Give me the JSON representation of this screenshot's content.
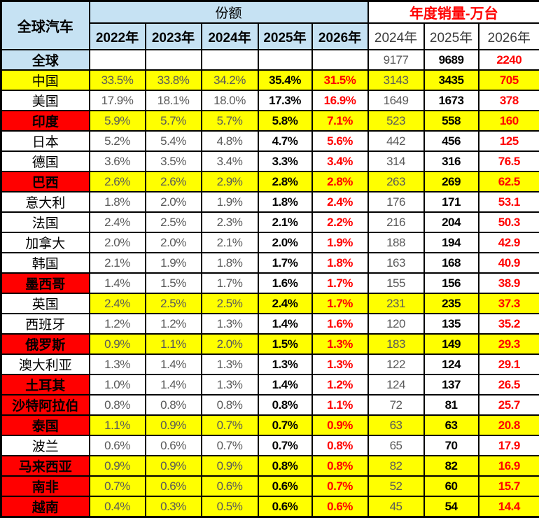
{
  "colors": {
    "yellow": "#FFFF00",
    "red": "#FF0000",
    "blue": "#C6E2F3",
    "grid": "#000000",
    "dim_text": "#595959",
    "red_text": "#FF0000"
  },
  "header": {
    "corner": "全球汽车",
    "share_group": "份额",
    "sales_group": "年度销量-万台",
    "share_years": [
      "2022年",
      "2023年",
      "2024年",
      "2025年",
      "2026年"
    ],
    "sales_years": [
      "2024年",
      "2025年",
      "2026年"
    ]
  },
  "chart_data": {
    "type": "table",
    "title": "全球汽车",
    "column_groups": [
      "份额",
      "年度销量-万台"
    ],
    "share_years": [
      "2022年",
      "2023年",
      "2024年",
      "2025年",
      "2026年"
    ],
    "sales_years": [
      "2024年",
      "2025年",
      "2026年"
    ],
    "rows": [
      {
        "name": "全球",
        "name_bg": "blue",
        "data_bg": "white",
        "bold": true,
        "share": [
          "",
          "",
          "",
          "",
          ""
        ],
        "sales": [
          "9177",
          "9689",
          "2240"
        ]
      },
      {
        "name": "中国",
        "name_bg": "yellow",
        "data_bg": "yellow",
        "bold": false,
        "share": [
          "33.5%",
          "33.8%",
          "34.2%",
          "35.4%",
          "31.5%"
        ],
        "sales": [
          "3143",
          "3435",
          "705"
        ]
      },
      {
        "name": "美国",
        "name_bg": "white",
        "data_bg": "white",
        "bold": false,
        "share": [
          "17.9%",
          "18.1%",
          "18.0%",
          "17.3%",
          "16.9%"
        ],
        "sales": [
          "1649",
          "1673",
          "378"
        ]
      },
      {
        "name": "印度",
        "name_bg": "red",
        "data_bg": "yellow",
        "bold": true,
        "share": [
          "5.9%",
          "5.7%",
          "5.7%",
          "5.8%",
          "7.1%"
        ],
        "sales": [
          "523",
          "558",
          "160"
        ]
      },
      {
        "name": "日本",
        "name_bg": "white",
        "data_bg": "white",
        "bold": false,
        "share": [
          "5.2%",
          "5.4%",
          "4.8%",
          "4.7%",
          "5.6%"
        ],
        "sales": [
          "442",
          "456",
          "125"
        ]
      },
      {
        "name": "德国",
        "name_bg": "white",
        "data_bg": "white",
        "bold": false,
        "share": [
          "3.6%",
          "3.5%",
          "3.4%",
          "3.3%",
          "3.4%"
        ],
        "sales": [
          "314",
          "316",
          "76.5"
        ]
      },
      {
        "name": "巴西",
        "name_bg": "red",
        "data_bg": "yellow",
        "bold": true,
        "share": [
          "2.6%",
          "2.6%",
          "2.9%",
          "2.8%",
          "2.8%"
        ],
        "sales": [
          "263",
          "269",
          "62.5"
        ]
      },
      {
        "name": "意大利",
        "name_bg": "white",
        "data_bg": "white",
        "bold": false,
        "share": [
          "1.8%",
          "2.0%",
          "1.9%",
          "1.8%",
          "2.4%"
        ],
        "sales": [
          "176",
          "171",
          "53.1"
        ]
      },
      {
        "name": "法国",
        "name_bg": "white",
        "data_bg": "white",
        "bold": false,
        "share": [
          "2.4%",
          "2.5%",
          "2.3%",
          "2.1%",
          "2.2%"
        ],
        "sales": [
          "216",
          "204",
          "50.3"
        ]
      },
      {
        "name": "加拿大",
        "name_bg": "white",
        "data_bg": "white",
        "bold": false,
        "share": [
          "2.0%",
          "2.0%",
          "2.1%",
          "2.0%",
          "1.9%"
        ],
        "sales": [
          "188",
          "194",
          "42.9"
        ]
      },
      {
        "name": "韩国",
        "name_bg": "white",
        "data_bg": "white",
        "bold": false,
        "share": [
          "2.1%",
          "1.9%",
          "1.8%",
          "1.7%",
          "1.8%"
        ],
        "sales": [
          "163",
          "168",
          "40.9"
        ]
      },
      {
        "name": "墨西哥",
        "name_bg": "red",
        "data_bg": "white",
        "bold": true,
        "share": [
          "1.4%",
          "1.5%",
          "1.7%",
          "1.6%",
          "1.7%"
        ],
        "sales": [
          "155",
          "156",
          "38.9"
        ]
      },
      {
        "name": "英国",
        "name_bg": "white",
        "data_bg": "yellow",
        "bold": false,
        "share": [
          "2.4%",
          "2.5%",
          "2.5%",
          "2.4%",
          "1.7%"
        ],
        "sales": [
          "231",
          "235",
          "37.3"
        ]
      },
      {
        "name": "西班牙",
        "name_bg": "white",
        "data_bg": "white",
        "bold": false,
        "share": [
          "1.2%",
          "1.2%",
          "1.3%",
          "1.4%",
          "1.6%"
        ],
        "sales": [
          "120",
          "135",
          "35.2"
        ]
      },
      {
        "name": "俄罗斯",
        "name_bg": "red",
        "data_bg": "yellow",
        "bold": true,
        "share": [
          "0.9%",
          "1.1%",
          "2.0%",
          "1.5%",
          "1.3%"
        ],
        "sales": [
          "183",
          "149",
          "29.3"
        ]
      },
      {
        "name": "澳大利亚",
        "name_bg": "white",
        "data_bg": "white",
        "bold": false,
        "share": [
          "1.3%",
          "1.4%",
          "1.3%",
          "1.3%",
          "1.3%"
        ],
        "sales": [
          "122",
          "124",
          "29.1"
        ]
      },
      {
        "name": "土耳其",
        "name_bg": "red",
        "data_bg": "white",
        "bold": true,
        "share": [
          "1.0%",
          "1.4%",
          "1.3%",
          "1.4%",
          "1.2%"
        ],
        "sales": [
          "124",
          "137",
          "26.5"
        ]
      },
      {
        "name": "沙特阿拉伯",
        "name_bg": "red",
        "data_bg": "white",
        "bold": true,
        "share": [
          "0.8%",
          "0.8%",
          "0.8%",
          "0.8%",
          "1.1%"
        ],
        "sales": [
          "72",
          "81",
          "25.7"
        ]
      },
      {
        "name": "泰国",
        "name_bg": "red",
        "data_bg": "yellow",
        "bold": true,
        "share": [
          "1.1%",
          "0.9%",
          "0.7%",
          "0.7%",
          "0.9%"
        ],
        "sales": [
          "63",
          "63",
          "20.8"
        ]
      },
      {
        "name": "波兰",
        "name_bg": "white",
        "data_bg": "white",
        "bold": false,
        "share": [
          "0.6%",
          "0.6%",
          "0.7%",
          "0.7%",
          "0.8%"
        ],
        "sales": [
          "65",
          "70",
          "17.9"
        ]
      },
      {
        "name": "马来西亚",
        "name_bg": "red",
        "data_bg": "yellow",
        "bold": true,
        "share": [
          "0.9%",
          "0.9%",
          "0.9%",
          "0.8%",
          "0.8%"
        ],
        "sales": [
          "82",
          "82",
          "16.9"
        ]
      },
      {
        "name": "南非",
        "name_bg": "red",
        "data_bg": "yellow",
        "bold": true,
        "share": [
          "0.7%",
          "0.6%",
          "0.6%",
          "0.6%",
          "0.7%"
        ],
        "sales": [
          "52",
          "60",
          "15.7"
        ]
      },
      {
        "name": "越南",
        "name_bg": "red",
        "data_bg": "yellow",
        "bold": true,
        "share": [
          "0.4%",
          "0.3%",
          "0.5%",
          "0.6%",
          "0.6%"
        ],
        "sales": [
          "45",
          "54",
          "14.4"
        ]
      }
    ]
  }
}
